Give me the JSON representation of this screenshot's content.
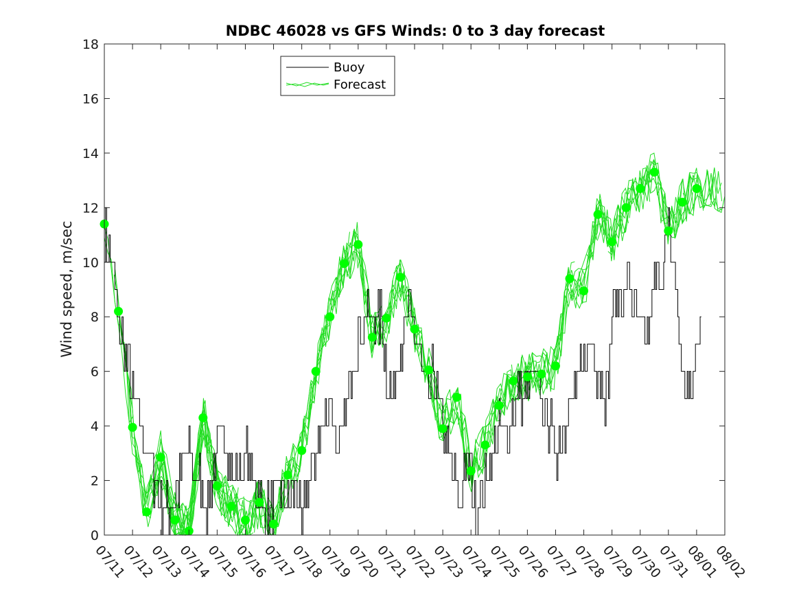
{
  "chart_data": {
    "type": "line",
    "title": "NDBC 46028 vs GFS Winds: 0 to 3 day forecast",
    "xlabel": "",
    "ylabel": "Wind speed, m/sec",
    "x_range": [
      "07/11",
      "08/02"
    ],
    "ylim": [
      0,
      18
    ],
    "yticks": [
      0,
      2,
      4,
      6,
      8,
      10,
      12,
      14,
      16,
      18
    ],
    "xtick_labels": [
      "07/11",
      "07/12",
      "07/13",
      "07/14",
      "07/15",
      "07/16",
      "07/17",
      "07/18",
      "07/19",
      "07/20",
      "07/21",
      "07/22",
      "07/23",
      "07/24",
      "07/25",
      "07/26",
      "07/27",
      "07/28",
      "07/29",
      "07/30",
      "07/31",
      "08/01",
      "08/02"
    ],
    "grid": false,
    "legend": {
      "placement": "top-left",
      "entries": [
        "Buoy",
        "Forecast"
      ]
    },
    "colors": {
      "buoy": "#000000",
      "forecast": "#00ff00",
      "forecast_line": "#22dd22",
      "axis": "#262626"
    },
    "series": [
      {
        "name": "Buoy",
        "style": "step",
        "day": [
          0,
          0.3,
          0.45,
          0.7,
          0.9,
          1.0,
          1.25,
          1.5,
          1.8,
          2.1,
          2.4,
          2.7,
          3.0,
          3.2,
          3.4,
          3.6,
          3.8,
          4.0,
          4.2,
          4.4,
          4.6,
          4.8,
          5.0,
          5.3,
          5.6,
          5.9,
          6.2,
          6.5,
          6.8,
          7.0,
          7.2,
          7.5,
          7.8,
          8.0,
          8.3,
          8.6,
          8.9,
          9.2,
          9.5,
          9.8,
          10.0,
          10.2,
          10.5,
          10.8,
          11.1,
          11.4,
          11.7,
          12.0,
          12.2,
          12.4,
          12.6,
          12.8,
          13.0,
          13.2,
          13.5,
          13.8,
          14.0,
          14.3,
          14.6,
          14.9,
          15.2,
          15.5,
          15.8,
          16.0,
          16.3,
          16.6,
          16.9,
          17.2,
          17.5,
          17.8,
          18.0,
          18.3,
          18.6,
          18.9,
          19.2,
          19.5,
          19.8,
          20.0,
          20.2,
          20.5,
          20.8,
          21.0,
          21.2
        ],
        "values": [
          11,
          10,
          8,
          7,
          6,
          5,
          4,
          3,
          2,
          1,
          1,
          2,
          3,
          2,
          2,
          1,
          2,
          3,
          4,
          3,
          2,
          2,
          3,
          2,
          1,
          1,
          2,
          1,
          2,
          0,
          2,
          3,
          4,
          5,
          3,
          5,
          7,
          8,
          8,
          8,
          6,
          5,
          7,
          8,
          7,
          5,
          6,
          4,
          3,
          2,
          1,
          3,
          2,
          1,
          2,
          3,
          4,
          4,
          5,
          5,
          6,
          5,
          4,
          3,
          4,
          5,
          6,
          7,
          6,
          5,
          8,
          9,
          9,
          8,
          7,
          9,
          10,
          11,
          10,
          6,
          5,
          7,
          9
        ]
      },
      {
        "name": "Forecast",
        "style": "markers",
        "day": [
          0,
          0.5,
          1.0,
          1.5,
          2.0,
          2.5,
          3.0,
          3.5,
          4.0,
          4.5,
          5.0,
          5.5,
          6.0,
          6.5,
          7.0,
          7.5,
          8.0,
          8.5,
          9.0,
          9.5,
          10.0,
          10.5,
          11.0,
          11.5,
          12.0,
          12.5,
          13.0,
          13.5,
          14.0,
          14.5,
          15.0,
          15.5,
          16.0,
          16.5,
          17.0,
          17.5,
          18.0,
          18.5,
          19.0,
          19.5,
          20.0,
          20.5,
          21.0
        ],
        "values": [
          11.4,
          8.2,
          3.95,
          0.85,
          2.85,
          0.55,
          0.15,
          4.3,
          1.8,
          1.05,
          0.55,
          1.2,
          0.4,
          2.2,
          3.1,
          6.0,
          8.0,
          9.95,
          10.65,
          7.25,
          7.95,
          9.45,
          7.55,
          6.05,
          3.9,
          5.05,
          2.35,
          3.3,
          4.75,
          5.65,
          5.8,
          5.9,
          6.2,
          9.4,
          8.95,
          11.75,
          10.75,
          12.0,
          12.7,
          13.3,
          11.15,
          12.2,
          12.7
        ]
      }
    ]
  }
}
